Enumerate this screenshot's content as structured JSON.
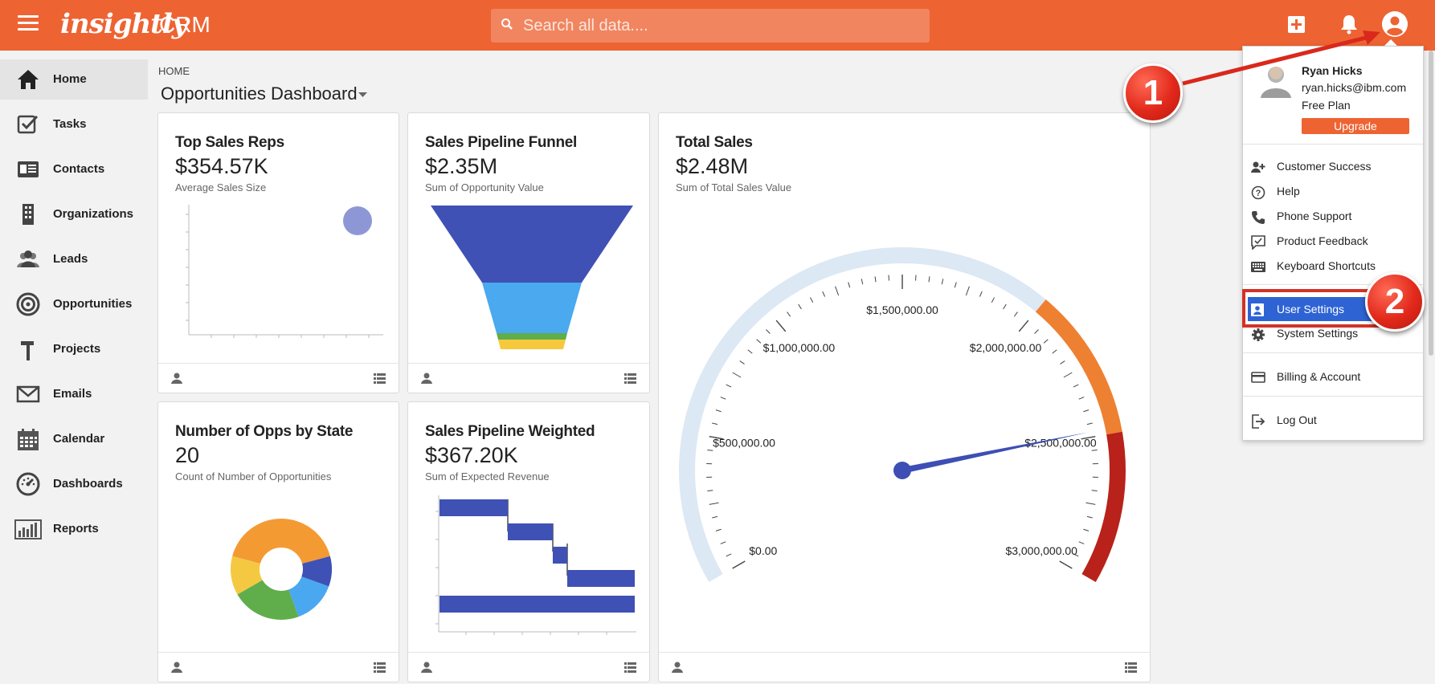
{
  "app": {
    "logo": "insightly",
    "product": "CRM"
  },
  "search": {
    "placeholder": "Search all data...."
  },
  "sidebar": {
    "items": [
      {
        "label": "Home",
        "icon": "home-icon"
      },
      {
        "label": "Tasks",
        "icon": "tasks-icon"
      },
      {
        "label": "Contacts",
        "icon": "contacts-icon"
      },
      {
        "label": "Organizations",
        "icon": "organizations-icon"
      },
      {
        "label": "Leads",
        "icon": "leads-icon"
      },
      {
        "label": "Opportunities",
        "icon": "opportunities-icon"
      },
      {
        "label": "Projects",
        "icon": "projects-icon"
      },
      {
        "label": "Emails",
        "icon": "emails-icon"
      },
      {
        "label": "Calendar",
        "icon": "calendar-icon"
      },
      {
        "label": "Dashboards",
        "icon": "dashboards-icon"
      },
      {
        "label": "Reports",
        "icon": "reports-icon"
      }
    ]
  },
  "breadcrumb": "HOME",
  "dashboard_title": "Opportunities Dashboard",
  "cards": [
    {
      "title": "Top Sales Reps",
      "value": "$354.57K",
      "subtitle": "Average Sales Size"
    },
    {
      "title": "Sales Pipeline Funnel",
      "value": "$2.35M",
      "subtitle": "Sum of Opportunity Value"
    },
    {
      "title": "Total Sales",
      "value": "$2.48M",
      "subtitle": "Sum of Total Sales Value"
    },
    {
      "title": "Number of Opps by State",
      "value": "20",
      "subtitle": "Count of Number of Opportunities"
    },
    {
      "title": "Sales Pipeline Weighted",
      "value": "$367.20K",
      "subtitle": "Sum of Expected Revenue"
    }
  ],
  "gauge": {
    "min": 0,
    "max": 3000000,
    "value": 2480000,
    "labels": [
      "$0.00",
      "$500,000.00",
      "$1,000,000.00",
      "$1,500,000.00",
      "$2,000,000.00",
      "$2,500,000.00",
      "$3,000,000.00"
    ],
    "colors": {
      "base": "#dce8f3",
      "warn": "#ee8032",
      "danger": "#b8221a",
      "needle": "#3d4fb4"
    }
  },
  "funnel": {
    "colors": [
      "#3f51b5",
      "#4aa9ef",
      "#5fae4b",
      "#f6c93c"
    ]
  },
  "donut": {
    "colors": [
      "#f49a33",
      "#3f51b5",
      "#49a8ef",
      "#5fae4b",
      "#f4c941"
    ]
  },
  "user_menu": {
    "name": "Ryan Hicks",
    "email": "ryan.hicks@ibm.com",
    "plan": "Free Plan",
    "upgrade_label": "Upgrade",
    "group1": [
      {
        "label": "Customer Success",
        "icon": "customer-success-icon"
      },
      {
        "label": "Help",
        "icon": "help-icon"
      },
      {
        "label": "Phone Support",
        "icon": "phone-icon"
      },
      {
        "label": "Product Feedback",
        "icon": "feedback-icon"
      },
      {
        "label": "Keyboard Shortcuts",
        "icon": "keyboard-icon"
      }
    ],
    "group2": [
      {
        "label": "User Settings",
        "icon": "user-settings-icon"
      },
      {
        "label": "System Settings",
        "icon": "gear-icon"
      }
    ],
    "group3": [
      {
        "label": "Billing & Account",
        "icon": "credit-card-icon"
      }
    ],
    "group4": [
      {
        "label": "Log Out",
        "icon": "logout-icon"
      }
    ]
  },
  "callouts": [
    "1",
    "2"
  ],
  "accent_color": "#ee6332"
}
